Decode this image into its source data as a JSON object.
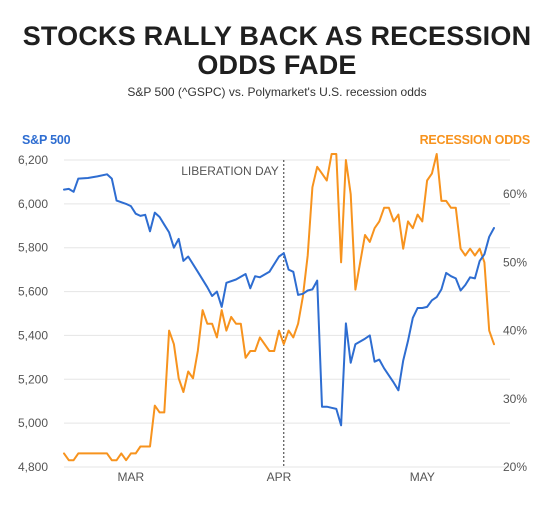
{
  "title_lines": [
    "STOCKS RALLY BACK AS RECESSION",
    "ODDS FADE"
  ],
  "subtitle": "S&P 500 (^GSPC) vs. Polymarket's U.S. recession odds",
  "colors": {
    "sp500": "#2e6dd1",
    "odds": "#f7931e",
    "grid": "#e5e5e5",
    "text": "#1f1f1f"
  },
  "chart_data": {
    "type": "line",
    "title": "STOCKS RALLY BACK AS RECESSION ODDS FADE",
    "subtitle": "S&P 500 (^GSPC) vs. Polymarket's U.S. recession odds",
    "x_range": [
      "2025-02-15",
      "2025-05-16"
    ],
    "x_ticks": [
      {
        "date": "2025-03-01",
        "label": "MAR"
      },
      {
        "date": "2025-04-01",
        "label": "APR"
      },
      {
        "date": "2025-05-01",
        "label": "MAY"
      }
    ],
    "y_left": {
      "label": "S&P 500",
      "range": [
        4800,
        6200
      ],
      "ticks": [
        4800,
        5000,
        5200,
        5400,
        5600,
        5800,
        6000,
        6200
      ],
      "tick_labels": [
        "4,800",
        "5,000",
        "5,200",
        "5,400",
        "5,600",
        "5,800",
        "6,000",
        "6,200"
      ]
    },
    "y_right": {
      "label": "RECESSION ODDS",
      "range": [
        20,
        65
      ],
      "ticks": [
        20,
        30,
        40,
        50,
        60
      ],
      "tick_labels": [
        "20%",
        "30%",
        "40%",
        "50%",
        "60%"
      ]
    },
    "grid": true,
    "annotation": {
      "date": "2025-04-02",
      "label": "LIBERATION DAY"
    },
    "series": [
      {
        "name": "S&P 500",
        "axis": "left",
        "points": [
          [
            "2025-02-15",
            6065
          ],
          [
            "2025-02-16",
            6068
          ],
          [
            "2025-02-17",
            6055
          ],
          [
            "2025-02-18",
            6115
          ],
          [
            "2025-02-20",
            6118
          ],
          [
            "2025-02-22",
            6125
          ],
          [
            "2025-02-24",
            6135
          ],
          [
            "2025-02-25",
            6115
          ],
          [
            "2025-02-26",
            6015
          ],
          [
            "2025-02-28",
            6000
          ],
          [
            "2025-03-01",
            5990
          ],
          [
            "2025-03-02",
            5955
          ],
          [
            "2025-03-03",
            5945
          ],
          [
            "2025-03-04",
            5950
          ],
          [
            "2025-03-05",
            5875
          ],
          [
            "2025-03-06",
            5960
          ],
          [
            "2025-03-07",
            5940
          ],
          [
            "2025-03-08",
            5905
          ],
          [
            "2025-03-09",
            5870
          ],
          [
            "2025-03-10",
            5800
          ],
          [
            "2025-03-11",
            5840
          ],
          [
            "2025-03-12",
            5740
          ],
          [
            "2025-03-13",
            5760
          ],
          [
            "2025-03-15",
            5690
          ],
          [
            "2025-03-17",
            5620
          ],
          [
            "2025-03-18",
            5580
          ],
          [
            "2025-03-19",
            5600
          ],
          [
            "2025-03-20",
            5530
          ],
          [
            "2025-03-21",
            5640
          ],
          [
            "2025-03-23",
            5655
          ],
          [
            "2025-03-25",
            5680
          ],
          [
            "2025-03-26",
            5615
          ],
          [
            "2025-03-27",
            5670
          ],
          [
            "2025-03-28",
            5665
          ],
          [
            "2025-03-30",
            5690
          ],
          [
            "2025-04-01",
            5760
          ],
          [
            "2025-04-02",
            5775
          ],
          [
            "2025-04-03",
            5700
          ],
          [
            "2025-04-04",
            5690
          ],
          [
            "2025-04-05",
            5585
          ],
          [
            "2025-04-06",
            5590
          ],
          [
            "2025-04-07",
            5605
          ],
          [
            "2025-04-08",
            5610
          ],
          [
            "2025-04-09",
            5650
          ],
          [
            "2025-04-10",
            5075
          ],
          [
            "2025-04-11",
            5075
          ],
          [
            "2025-04-12",
            5070
          ],
          [
            "2025-04-13",
            5065
          ],
          [
            "2025-04-14",
            4990
          ],
          [
            "2025-04-15",
            5455
          ],
          [
            "2025-04-16",
            5275
          ],
          [
            "2025-04-17",
            5360
          ],
          [
            "2025-04-19",
            5385
          ],
          [
            "2025-04-20",
            5400
          ],
          [
            "2025-04-21",
            5280
          ],
          [
            "2025-04-22",
            5290
          ],
          [
            "2025-04-23",
            5250
          ],
          [
            "2025-04-25",
            5185
          ],
          [
            "2025-04-26",
            5150
          ],
          [
            "2025-04-27",
            5285
          ],
          [
            "2025-04-28",
            5375
          ],
          [
            "2025-04-29",
            5480
          ],
          [
            "2025-04-30",
            5525
          ],
          [
            "2025-05-01",
            5525
          ],
          [
            "2025-05-02",
            5530
          ],
          [
            "2025-05-03",
            5560
          ],
          [
            "2025-05-04",
            5575
          ],
          [
            "2025-05-05",
            5610
          ],
          [
            "2025-05-06",
            5685
          ],
          [
            "2025-05-07",
            5670
          ],
          [
            "2025-05-08",
            5660
          ],
          [
            "2025-05-09",
            5605
          ],
          [
            "2025-05-10",
            5630
          ],
          [
            "2025-05-11",
            5665
          ],
          [
            "2025-05-12",
            5660
          ],
          [
            "2025-05-13",
            5740
          ],
          [
            "2025-05-14",
            5770
          ],
          [
            "2025-05-15",
            5850
          ],
          [
            "2025-05-16",
            5890
          ]
        ]
      },
      {
        "name": "RECESSION ODDS",
        "axis": "right",
        "points": [
          [
            "2025-02-15",
            22
          ],
          [
            "2025-02-16",
            21
          ],
          [
            "2025-02-17",
            21
          ],
          [
            "2025-02-18",
            22
          ],
          [
            "2025-02-20",
            22
          ],
          [
            "2025-02-22",
            22
          ],
          [
            "2025-02-24",
            22
          ],
          [
            "2025-02-25",
            21
          ],
          [
            "2025-02-26",
            21
          ],
          [
            "2025-02-27",
            22
          ],
          [
            "2025-02-28",
            21
          ],
          [
            "2025-03-01",
            22
          ],
          [
            "2025-03-02",
            22
          ],
          [
            "2025-03-03",
            23
          ],
          [
            "2025-03-04",
            23
          ],
          [
            "2025-03-05",
            23
          ],
          [
            "2025-03-06",
            29
          ],
          [
            "2025-03-07",
            28
          ],
          [
            "2025-03-08",
            28
          ],
          [
            "2025-03-09",
            40
          ],
          [
            "2025-03-10",
            38
          ],
          [
            "2025-03-11",
            33
          ],
          [
            "2025-03-12",
            31
          ],
          [
            "2025-03-13",
            34
          ],
          [
            "2025-03-14",
            33
          ],
          [
            "2025-03-15",
            37
          ],
          [
            "2025-03-16",
            43
          ],
          [
            "2025-03-17",
            41
          ],
          [
            "2025-03-18",
            41
          ],
          [
            "2025-03-19",
            39
          ],
          [
            "2025-03-20",
            43
          ],
          [
            "2025-03-21",
            40
          ],
          [
            "2025-03-22",
            42
          ],
          [
            "2025-03-23",
            41
          ],
          [
            "2025-03-24",
            41
          ],
          [
            "2025-03-25",
            36
          ],
          [
            "2025-03-26",
            37
          ],
          [
            "2025-03-27",
            37
          ],
          [
            "2025-03-28",
            39
          ],
          [
            "2025-03-30",
            37
          ],
          [
            "2025-03-31",
            37
          ],
          [
            "2025-04-01",
            40
          ],
          [
            "2025-04-02",
            38
          ],
          [
            "2025-04-03",
            40
          ],
          [
            "2025-04-04",
            39
          ],
          [
            "2025-04-05",
            41
          ],
          [
            "2025-04-06",
            45
          ],
          [
            "2025-04-07",
            51
          ],
          [
            "2025-04-08",
            61
          ],
          [
            "2025-04-09",
            64
          ],
          [
            "2025-04-10",
            63
          ],
          [
            "2025-04-11",
            62
          ],
          [
            "2025-04-12",
            66
          ],
          [
            "2025-04-13",
            66
          ],
          [
            "2025-04-14",
            50
          ],
          [
            "2025-04-15",
            65
          ],
          [
            "2025-04-16",
            60
          ],
          [
            "2025-04-17",
            46
          ],
          [
            "2025-04-18",
            50
          ],
          [
            "2025-04-19",
            54
          ],
          [
            "2025-04-20",
            53
          ],
          [
            "2025-04-21",
            55
          ],
          [
            "2025-04-22",
            56
          ],
          [
            "2025-04-23",
            58
          ],
          [
            "2025-04-24",
            58
          ],
          [
            "2025-04-25",
            56
          ],
          [
            "2025-04-26",
            57
          ],
          [
            "2025-04-27",
            52
          ],
          [
            "2025-04-28",
            56
          ],
          [
            "2025-04-29",
            55
          ],
          [
            "2025-04-30",
            57
          ],
          [
            "2025-05-01",
            56
          ],
          [
            "2025-05-02",
            62
          ],
          [
            "2025-05-03",
            63
          ],
          [
            "2025-05-04",
            66
          ],
          [
            "2025-05-05",
            59
          ],
          [
            "2025-05-06",
            59
          ],
          [
            "2025-05-07",
            58
          ],
          [
            "2025-05-08",
            58
          ],
          [
            "2025-05-09",
            52
          ],
          [
            "2025-05-10",
            51
          ],
          [
            "2025-05-11",
            52
          ],
          [
            "2025-05-12",
            51
          ],
          [
            "2025-05-13",
            52
          ],
          [
            "2025-05-14",
            50
          ],
          [
            "2025-05-15",
            40
          ],
          [
            "2025-05-16",
            38
          ]
        ]
      }
    ]
  }
}
